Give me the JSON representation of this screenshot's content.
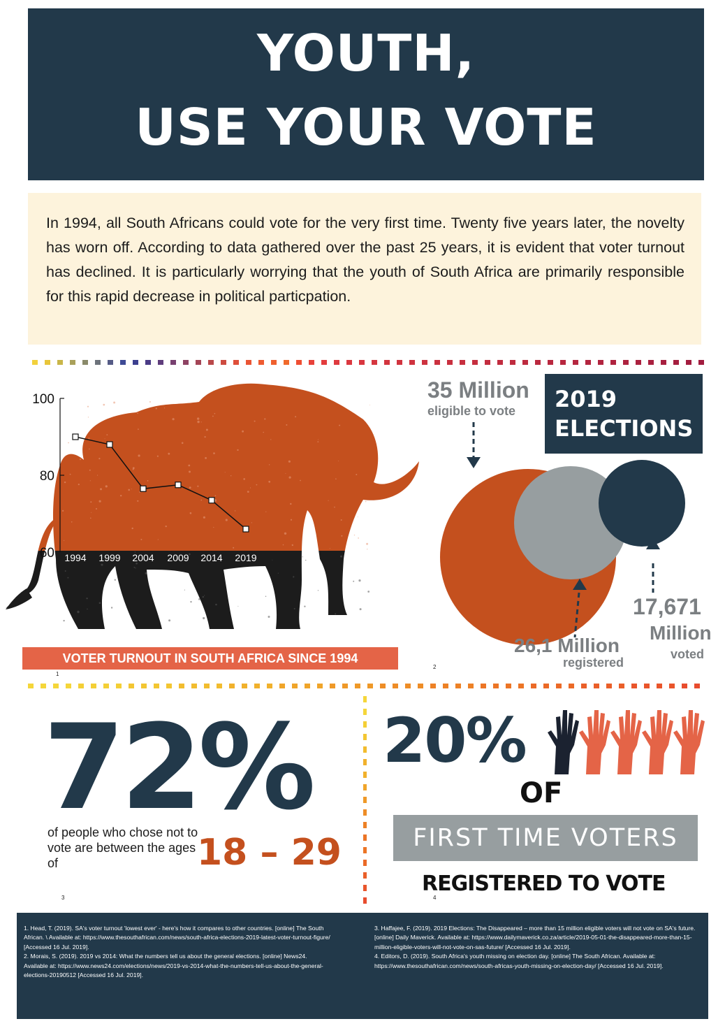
{
  "title": {
    "line1": "YOUTH,",
    "line2": "USE YOUR VOTE"
  },
  "intro": "In 1994, all South Africans could vote for the very first time. Twenty five years later, the novelty has worn off. According to data gathered over the past 25 years, it is evident that voter turnout has declined. It is particularly worrying that the youth of South Africa are primarily responsible for this rapid decrease in political particpation.",
  "colors": {
    "navy": "#22394a",
    "orange": "#c4501e",
    "salmon": "#e46447",
    "grey": "#979ea0",
    "cream": "#fdf3dc"
  },
  "chart_data": {
    "type": "line",
    "title": "VOTER TURNOUT IN SOUTH AFRICA SINCE 1994",
    "categories": [
      "1994",
      "1999",
      "2004",
      "2009",
      "2014",
      "2019"
    ],
    "values": [
      90,
      88,
      76.5,
      77.5,
      73.5,
      66
    ],
    "ylim": [
      60,
      100
    ],
    "yticks": [
      "60",
      "80",
      "100"
    ],
    "footnote": "1"
  },
  "elections": {
    "title_line1": "2019",
    "title_line2": "ELECTIONS",
    "eligible_value": "35 Million",
    "eligible_label": "eligible to vote",
    "registered_value": "26,1 Million",
    "registered_label": "registered",
    "voted_value_line1": "17,671",
    "voted_value_line2": "Million",
    "voted_label": "voted",
    "footnote": "2"
  },
  "stat72": {
    "value": "72%",
    "text": "of people who chose not to vote are between the ages of",
    "age_range": "18 – 29",
    "footnote": "3"
  },
  "stat20": {
    "value": "20%",
    "of": "OF",
    "first_time": "FIRST TIME VOTERS",
    "registered": "REGISTERED TO VOTE",
    "footnote": "4",
    "hands_total": 5,
    "hands_highlighted": 1
  },
  "references": {
    "ref1": "1.  Head, T. (2019). SA's voter turnout 'lowest ever' - here's how it compares to other countries. [online] The South African. \\ Available at: https://www.thesouthafrican.com/news/south-africa-elections-2019-latest-voter-turnout-figure/ [Accessed 16 Jul. 2019].",
    "ref2": "2.  Morais, S. (2019). 2019 vs 2014: What the numbers tell us about the general elections. [online] News24. Available at: https://www.news24.com/elections/news/2019-vs-2014-what-the-numbers-tell-us-about-the-general-elections-20190512 [Accessed 16 Jul. 2019].",
    "ref3": "3.  Haffajee, F. (2019). 2019 Elections: The Disappeared – more than 15 million eligible voters will not vote on SA's future. [online] Daily Maverick. Available at: https://www.dailymaverick.co.za/article/2019-05-01-the-disappeared-more-than-15-million-eligible-voters-will-not-vote-on-sas-future/ [Accessed 16 Jul. 2019].",
    "ref4": "4.  Editors, D. (2019). South Africa's youth missing on election day. [online] The South African. Available at: https://www.thesouthafrican.com/news/south-africas-youth-missing-on-election-day/ [Accessed 16 Jul. 2019]."
  }
}
